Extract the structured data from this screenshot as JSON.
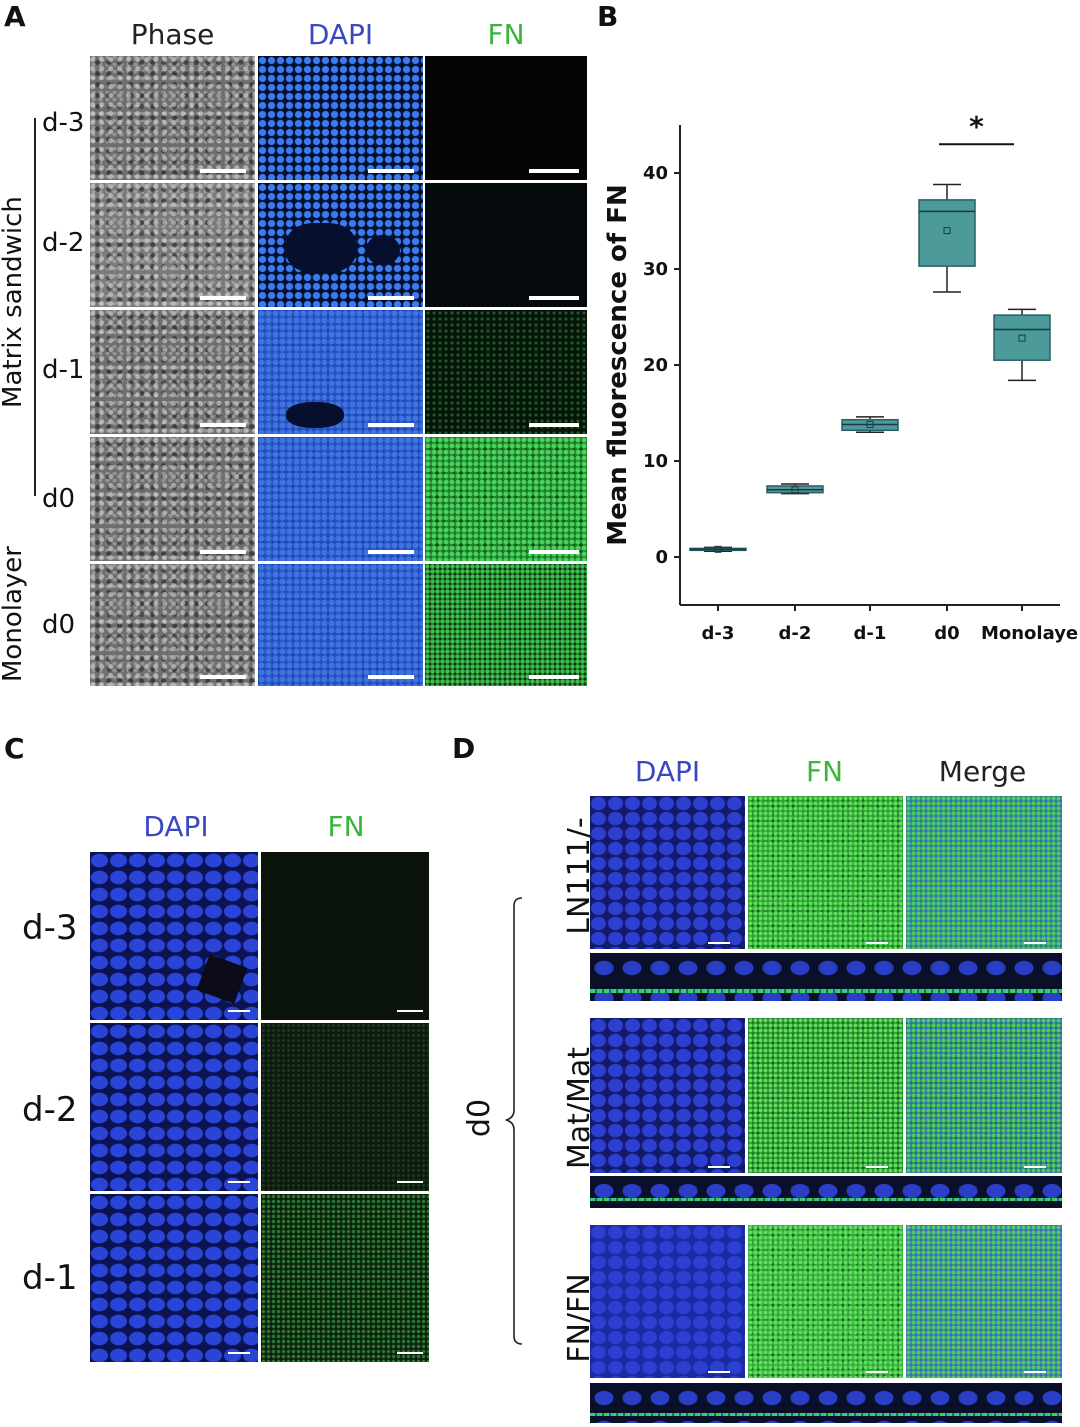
{
  "panels": {
    "a": "A",
    "b": "B",
    "c": "C",
    "d": "D"
  },
  "panel_a": {
    "col_headers": {
      "phase": "Phase",
      "dapi": "DAPI",
      "fn": "FN"
    },
    "rows": [
      "d-3",
      "d-2",
      "d-1",
      "d0",
      "d0"
    ],
    "group_labels": {
      "matrix": "Matrix sandwich",
      "monolayer": "Monolayer"
    }
  },
  "panel_c": {
    "col_headers": {
      "dapi": "DAPI",
      "fn": "FN"
    },
    "rows": [
      "d-3",
      "d-2",
      "d-1"
    ]
  },
  "panel_d": {
    "col_headers": {
      "dapi": "DAPI",
      "fn": "FN",
      "merge": "Merge"
    },
    "rows": [
      "LN111/-",
      "Mat/Mat",
      "FN/FN"
    ],
    "group": "d0"
  },
  "colors": {
    "dapi_text": "#3a49c0",
    "fn_text": "#3cb43c",
    "box_fill": "#4d9a9a",
    "box_stroke": "#2a5f66"
  },
  "chart_data": {
    "type": "box",
    "title": "",
    "ylabel": "Mean fluorescence of FN",
    "xlabel": "",
    "ylim": [
      -5,
      45
    ],
    "yticks": [
      0,
      10,
      20,
      30,
      40
    ],
    "categories": [
      "d-3",
      "d-2",
      "d-1",
      "d0",
      "Monolayer"
    ],
    "boxes": [
      {
        "label": "d-3",
        "min": 0.6,
        "q1": 0.7,
        "median": 0.8,
        "q3": 0.9,
        "max": 1.0,
        "mean": 0.8
      },
      {
        "label": "d-2",
        "min": 6.6,
        "q1": 6.7,
        "median": 7.0,
        "q3": 7.4,
        "max": 7.6,
        "mean": 7.0
      },
      {
        "label": "d-1",
        "min": 13.0,
        "q1": 13.2,
        "median": 13.8,
        "q3": 14.3,
        "max": 14.6,
        "mean": 13.8
      },
      {
        "label": "d0",
        "min": 27.6,
        "q1": 30.3,
        "median": 36.0,
        "q3": 37.2,
        "max": 38.8,
        "mean": 34.0
      },
      {
        "label": "Monolayer",
        "min": 18.4,
        "q1": 20.5,
        "median": 23.7,
        "q3": 25.2,
        "max": 25.8,
        "mean": 22.8
      }
    ],
    "annotations": [
      {
        "text": "*",
        "between": [
          "d0",
          "Monolayer"
        ]
      }
    ]
  }
}
